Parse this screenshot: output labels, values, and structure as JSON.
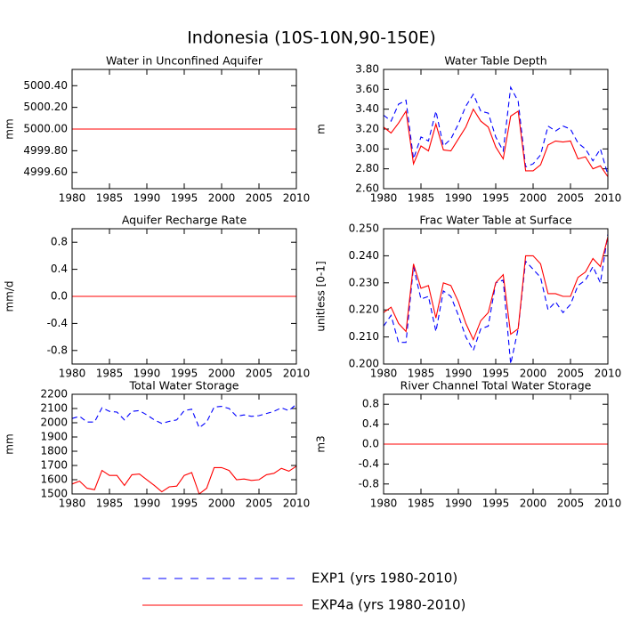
{
  "title": "Indonesia (10S-10N,90-150E)",
  "legend": [
    {
      "name": "EXP1 (yrs 1980-2010)",
      "color": "#0000ff",
      "dash": true
    },
    {
      "name": "EXP4a (yrs 1980-2010)",
      "color": "#ff0000",
      "dash": false
    }
  ],
  "chart_data": [
    {
      "type": "line",
      "title": "Water in Unconfined Aquifer",
      "y_label": "mm",
      "x": [
        1980,
        1981,
        1982,
        1983,
        1984,
        1985,
        1986,
        1987,
        1988,
        1989,
        1990,
        1991,
        1992,
        1993,
        1994,
        1995,
        1996,
        1997,
        1998,
        1999,
        2000,
        2001,
        2002,
        2003,
        2004,
        2005,
        2006,
        2007,
        2008,
        2009,
        2010
      ],
      "xlim": [
        1980,
        2010
      ],
      "xticks": [
        1980,
        1985,
        1990,
        1995,
        2000,
        2005,
        2010
      ],
      "ylim": [
        4999.45,
        5000.55
      ],
      "yticks": [
        {
          "value": 4999.6,
          "label": "4999.60"
        },
        {
          "value": 4999.8,
          "label": "4999.80"
        },
        {
          "value": 5000,
          "label": "5000.00"
        },
        {
          "value": 5000.2,
          "label": "5000.20"
        },
        {
          "value": 5000.4,
          "label": "5000.40"
        }
      ],
      "series": [
        {
          "color": "#0000ff",
          "dash": true,
          "values": [
            5000,
            5000,
            5000,
            5000,
            5000,
            5000,
            5000,
            5000,
            5000,
            5000,
            5000,
            5000,
            5000,
            5000,
            5000,
            5000,
            5000,
            5000,
            5000,
            5000,
            5000,
            5000,
            5000,
            5000,
            5000,
            5000,
            5000,
            5000,
            5000,
            5000,
            5000
          ]
        },
        {
          "color": "#ff0000",
          "dash": false,
          "values": [
            5000,
            5000,
            5000,
            5000,
            5000,
            5000,
            5000,
            5000,
            5000,
            5000,
            5000,
            5000,
            5000,
            5000,
            5000,
            5000,
            5000,
            5000,
            5000,
            5000,
            5000,
            5000,
            5000,
            5000,
            5000,
            5000,
            5000,
            5000,
            5000,
            5000,
            5000
          ]
        }
      ]
    },
    {
      "type": "line",
      "title": "Water Table Depth",
      "y_label": "m",
      "x": [
        1980,
        1981,
        1982,
        1983,
        1984,
        1985,
        1986,
        1987,
        1988,
        1989,
        1990,
        1991,
        1992,
        1993,
        1994,
        1995,
        1996,
        1997,
        1998,
        1999,
        2000,
        2001,
        2002,
        2003,
        2004,
        2005,
        2006,
        2007,
        2008,
        2009,
        2010
      ],
      "xlim": [
        1980,
        2010
      ],
      "xticks": [
        1980,
        1985,
        1990,
        1995,
        2000,
        2005,
        2010
      ],
      "ylim": [
        2.6,
        3.8
      ],
      "yticks": [
        {
          "value": 2.6,
          "label": "2.60"
        },
        {
          "value": 2.8,
          "label": "2.80"
        },
        {
          "value": 3,
          "label": "3.00"
        },
        {
          "value": 3.2,
          "label": "3.20"
        },
        {
          "value": 3.4,
          "label": "3.40"
        },
        {
          "value": 3.6,
          "label": "3.60"
        },
        {
          "value": 3.8,
          "label": "3.80"
        }
      ],
      "series": [
        {
          "color": "#0000ff",
          "dash": true,
          "values": [
            3.34,
            3.28,
            3.45,
            3.49,
            2.9,
            3.12,
            3.08,
            3.38,
            3.03,
            3.1,
            3.25,
            3.43,
            3.55,
            3.38,
            3.36,
            3.12,
            2.98,
            3.62,
            3.48,
            2.82,
            2.85,
            2.94,
            3.23,
            3.18,
            3.23,
            3.2,
            3.06,
            3.0,
            2.88,
            3.0,
            2.74
          ]
        },
        {
          "color": "#ff0000",
          "dash": false,
          "values": [
            3.22,
            3.16,
            3.26,
            3.38,
            2.85,
            3.03,
            2.98,
            3.25,
            2.99,
            2.98,
            3.1,
            3.22,
            3.4,
            3.28,
            3.22,
            3.02,
            2.9,
            3.33,
            3.38,
            2.78,
            2.78,
            2.84,
            3.04,
            3.08,
            3.07,
            3.08,
            2.9,
            2.92,
            2.8,
            2.83,
            2.72
          ]
        }
      ]
    },
    {
      "type": "line",
      "title": "Aquifer Recharge Rate",
      "y_label": "mm/d",
      "x": [
        1980,
        1981,
        1982,
        1983,
        1984,
        1985,
        1986,
        1987,
        1988,
        1989,
        1990,
        1991,
        1992,
        1993,
        1994,
        1995,
        1996,
        1997,
        1998,
        1999,
        2000,
        2001,
        2002,
        2003,
        2004,
        2005,
        2006,
        2007,
        2008,
        2009,
        2010
      ],
      "xlim": [
        1980,
        2010
      ],
      "xticks": [
        1980,
        1985,
        1990,
        1995,
        2000,
        2005,
        2010
      ],
      "ylim": [
        -1,
        1
      ],
      "yticks": [
        -0.8,
        -0.4,
        {
          "value": 0,
          "label": "0.0"
        },
        0.4,
        0.8
      ],
      "series": [
        {
          "color": "#0000ff",
          "dash": true,
          "values": [
            0,
            0,
            0,
            0,
            0,
            0,
            0,
            0,
            0,
            0,
            0,
            0,
            0,
            0,
            0,
            0,
            0,
            0,
            0,
            0,
            0,
            0,
            0,
            0,
            0,
            0,
            0,
            0,
            0,
            0,
            0
          ]
        },
        {
          "color": "#ff0000",
          "dash": false,
          "values": [
            0,
            0,
            0,
            0,
            0,
            0,
            0,
            0,
            0,
            0,
            0,
            0,
            0,
            0,
            0,
            0,
            0,
            0,
            0,
            0,
            0,
            0,
            0,
            0,
            0,
            0,
            0,
            0,
            0,
            0,
            0
          ]
        }
      ]
    },
    {
      "type": "line",
      "title": "Frac Water Table at Surface",
      "y_label": "unitless [0-1]",
      "x": [
        1980,
        1981,
        1982,
        1983,
        1984,
        1985,
        1986,
        1987,
        1988,
        1989,
        1990,
        1991,
        1992,
        1993,
        1994,
        1995,
        1996,
        1997,
        1998,
        1999,
        2000,
        2001,
        2002,
        2003,
        2004,
        2005,
        2006,
        2007,
        2008,
        2009,
        2010
      ],
      "xlim": [
        1980,
        2010
      ],
      "xticks": [
        1980,
        1985,
        1990,
        1995,
        2000,
        2005,
        2010
      ],
      "ylim": [
        0.2,
        0.25
      ],
      "yticks": [
        {
          "value": 0.2,
          "label": "0.200"
        },
        {
          "value": 0.21,
          "label": "0.210"
        },
        {
          "value": 0.22,
          "label": "0.220"
        },
        {
          "value": 0.23,
          "label": "0.230"
        },
        {
          "value": 0.24,
          "label": "0.240"
        },
        {
          "value": 0.25,
          "label": "0.250"
        }
      ],
      "series": [
        {
          "color": "#0000ff",
          "dash": true,
          "values": [
            0.214,
            0.218,
            0.208,
            0.208,
            0.236,
            0.224,
            0.225,
            0.212,
            0.227,
            0.225,
            0.218,
            0.21,
            0.205,
            0.213,
            0.214,
            0.23,
            0.231,
            0.2,
            0.213,
            0.238,
            0.235,
            0.232,
            0.22,
            0.223,
            0.219,
            0.222,
            0.229,
            0.231,
            0.236,
            0.23,
            0.248
          ]
        },
        {
          "color": "#ff0000",
          "dash": false,
          "values": [
            0.219,
            0.221,
            0.215,
            0.212,
            0.237,
            0.228,
            0.229,
            0.217,
            0.23,
            0.229,
            0.223,
            0.215,
            0.209,
            0.216,
            0.219,
            0.23,
            0.233,
            0.211,
            0.213,
            0.24,
            0.24,
            0.237,
            0.226,
            0.226,
            0.225,
            0.225,
            0.232,
            0.234,
            0.239,
            0.236,
            0.247
          ]
        }
      ]
    },
    {
      "type": "line",
      "title": "Total Water Storage",
      "y_label": "mm",
      "x": [
        1980,
        1981,
        1982,
        1983,
        1984,
        1985,
        1986,
        1987,
        1988,
        1989,
        1990,
        1991,
        1992,
        1993,
        1994,
        1995,
        1996,
        1997,
        1998,
        1999,
        2000,
        2001,
        2002,
        2003,
        2004,
        2005,
        2006,
        2007,
        2008,
        2009,
        2010
      ],
      "xlim": [
        1980,
        2010
      ],
      "xticks": [
        1980,
        1985,
        1990,
        1995,
        2000,
        2005,
        2010
      ],
      "ylim": [
        1500,
        2200
      ],
      "yticks": [
        1500,
        1600,
        1700,
        1800,
        1900,
        2000,
        2100,
        2200
      ],
      "series": [
        {
          "color": "#0000ff",
          "dash": true,
          "values": [
            2030,
            2045,
            2005,
            2005,
            2105,
            2080,
            2075,
            2020,
            2080,
            2085,
            2055,
            2020,
            1995,
            2010,
            2020,
            2085,
            2095,
            1965,
            2005,
            2110,
            2115,
            2100,
            2045,
            2055,
            2045,
            2050,
            2065,
            2080,
            2105,
            2085,
            2130
          ]
        },
        {
          "color": "#ff0000",
          "dash": false,
          "values": [
            1570,
            1590,
            1540,
            1530,
            1665,
            1630,
            1630,
            1560,
            1635,
            1640,
            1600,
            1560,
            1515,
            1550,
            1555,
            1630,
            1650,
            1500,
            1540,
            1685,
            1685,
            1665,
            1600,
            1605,
            1595,
            1600,
            1635,
            1645,
            1680,
            1660,
            1695
          ]
        }
      ]
    },
    {
      "type": "line",
      "title": "River Channel Total Water Storage",
      "y_label": "m3",
      "x": [
        1980,
        1981,
        1982,
        1983,
        1984,
        1985,
        1986,
        1987,
        1988,
        1989,
        1990,
        1991,
        1992,
        1993,
        1994,
        1995,
        1996,
        1997,
        1998,
        1999,
        2000,
        2001,
        2002,
        2003,
        2004,
        2005,
        2006,
        2007,
        2008,
        2009,
        2010
      ],
      "xlim": [
        1980,
        2010
      ],
      "xticks": [
        1980,
        1985,
        1990,
        1995,
        2000,
        2005,
        2010
      ],
      "ylim": [
        -1,
        1
      ],
      "yticks": [
        -0.8,
        -0.4,
        {
          "value": 0,
          "label": "0.0"
        },
        0.4,
        0.8
      ],
      "series": [
        {
          "color": "#0000ff",
          "dash": true,
          "values": [
            0,
            0,
            0,
            0,
            0,
            0,
            0,
            0,
            0,
            0,
            0,
            0,
            0,
            0,
            0,
            0,
            0,
            0,
            0,
            0,
            0,
            0,
            0,
            0,
            0,
            0,
            0,
            0,
            0,
            0,
            0
          ]
        },
        {
          "color": "#ff0000",
          "dash": false,
          "values": [
            0,
            0,
            0,
            0,
            0,
            0,
            0,
            0,
            0,
            0,
            0,
            0,
            0,
            0,
            0,
            0,
            0,
            0,
            0,
            0,
            0,
            0,
            0,
            0,
            0,
            0,
            0,
            0,
            0,
            0,
            0
          ]
        }
      ]
    }
  ]
}
